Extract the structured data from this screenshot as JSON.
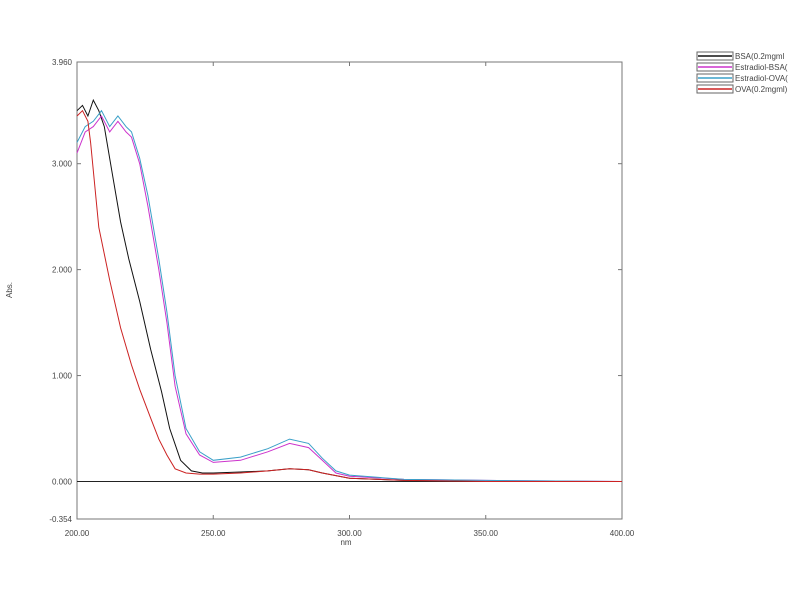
{
  "chart_data": {
    "type": "line",
    "title": "",
    "xlabel": "nm",
    "ylabel": "Abs.",
    "xlim": [
      200,
      400
    ],
    "ylim": [
      -0.354,
      3.96
    ],
    "xticks": [
      "200.00",
      "250.00",
      "300.00",
      "350.00",
      "400.00"
    ],
    "yticks": [
      "3.960",
      "3.000",
      "2.000",
      "1.000",
      "0.000",
      "-0.354"
    ],
    "grid": false,
    "legend_position": "top-right",
    "series": [
      {
        "name": "BSA(0.2mgml",
        "color": "#111111",
        "x": [
          200,
          202,
          204,
          206,
          208,
          210,
          213,
          216,
          219,
          223,
          227,
          231,
          234,
          238,
          242,
          246,
          250,
          260,
          270,
          278,
          285,
          290,
          300,
          320,
          350,
          400
        ],
        "y": [
          3.5,
          3.55,
          3.45,
          3.6,
          3.5,
          3.35,
          2.9,
          2.45,
          2.1,
          1.7,
          1.25,
          0.85,
          0.5,
          0.2,
          0.1,
          0.08,
          0.08,
          0.09,
          0.1,
          0.12,
          0.11,
          0.08,
          0.03,
          0.01,
          0.0,
          0.0
        ]
      },
      {
        "name": "Estradiol-BSA(",
        "color": "#cc33cc",
        "x": [
          200,
          203,
          206,
          209,
          212,
          215,
          218,
          220,
          223,
          226,
          230,
          233,
          236,
          240,
          245,
          250,
          260,
          270,
          278,
          285,
          290,
          295,
          300,
          320,
          350,
          400
        ],
        "y": [
          3.1,
          3.3,
          3.35,
          3.45,
          3.3,
          3.4,
          3.3,
          3.25,
          3.0,
          2.6,
          2.0,
          1.5,
          0.9,
          0.45,
          0.25,
          0.18,
          0.2,
          0.28,
          0.36,
          0.32,
          0.2,
          0.08,
          0.05,
          0.02,
          0.01,
          0.0
        ]
      },
      {
        "name": "Estradiol-OVA(",
        "color": "#3aa0c8",
        "x": [
          200,
          203,
          206,
          209,
          212,
          215,
          218,
          220,
          223,
          226,
          230,
          233,
          236,
          240,
          245,
          250,
          260,
          270,
          278,
          285,
          290,
          295,
          300,
          320,
          350,
          400
        ],
        "y": [
          3.2,
          3.35,
          3.4,
          3.5,
          3.35,
          3.45,
          3.35,
          3.3,
          3.05,
          2.7,
          2.1,
          1.6,
          1.0,
          0.5,
          0.28,
          0.2,
          0.23,
          0.31,
          0.4,
          0.36,
          0.22,
          0.1,
          0.06,
          0.02,
          0.01,
          0.0
        ]
      },
      {
        "name": "OVA(0.2mgml)",
        "color": "#cc2222",
        "x": [
          200,
          202,
          204,
          205,
          208,
          212,
          216,
          220,
          223,
          227,
          230,
          233,
          236,
          240,
          245,
          250,
          260,
          270,
          278,
          285,
          290,
          300,
          320,
          350,
          400
        ],
        "y": [
          3.45,
          3.5,
          3.4,
          3.2,
          2.4,
          1.9,
          1.45,
          1.1,
          0.87,
          0.6,
          0.4,
          0.25,
          0.12,
          0.08,
          0.07,
          0.07,
          0.08,
          0.1,
          0.12,
          0.11,
          0.08,
          0.03,
          0.01,
          0.0,
          0.0
        ]
      }
    ]
  }
}
